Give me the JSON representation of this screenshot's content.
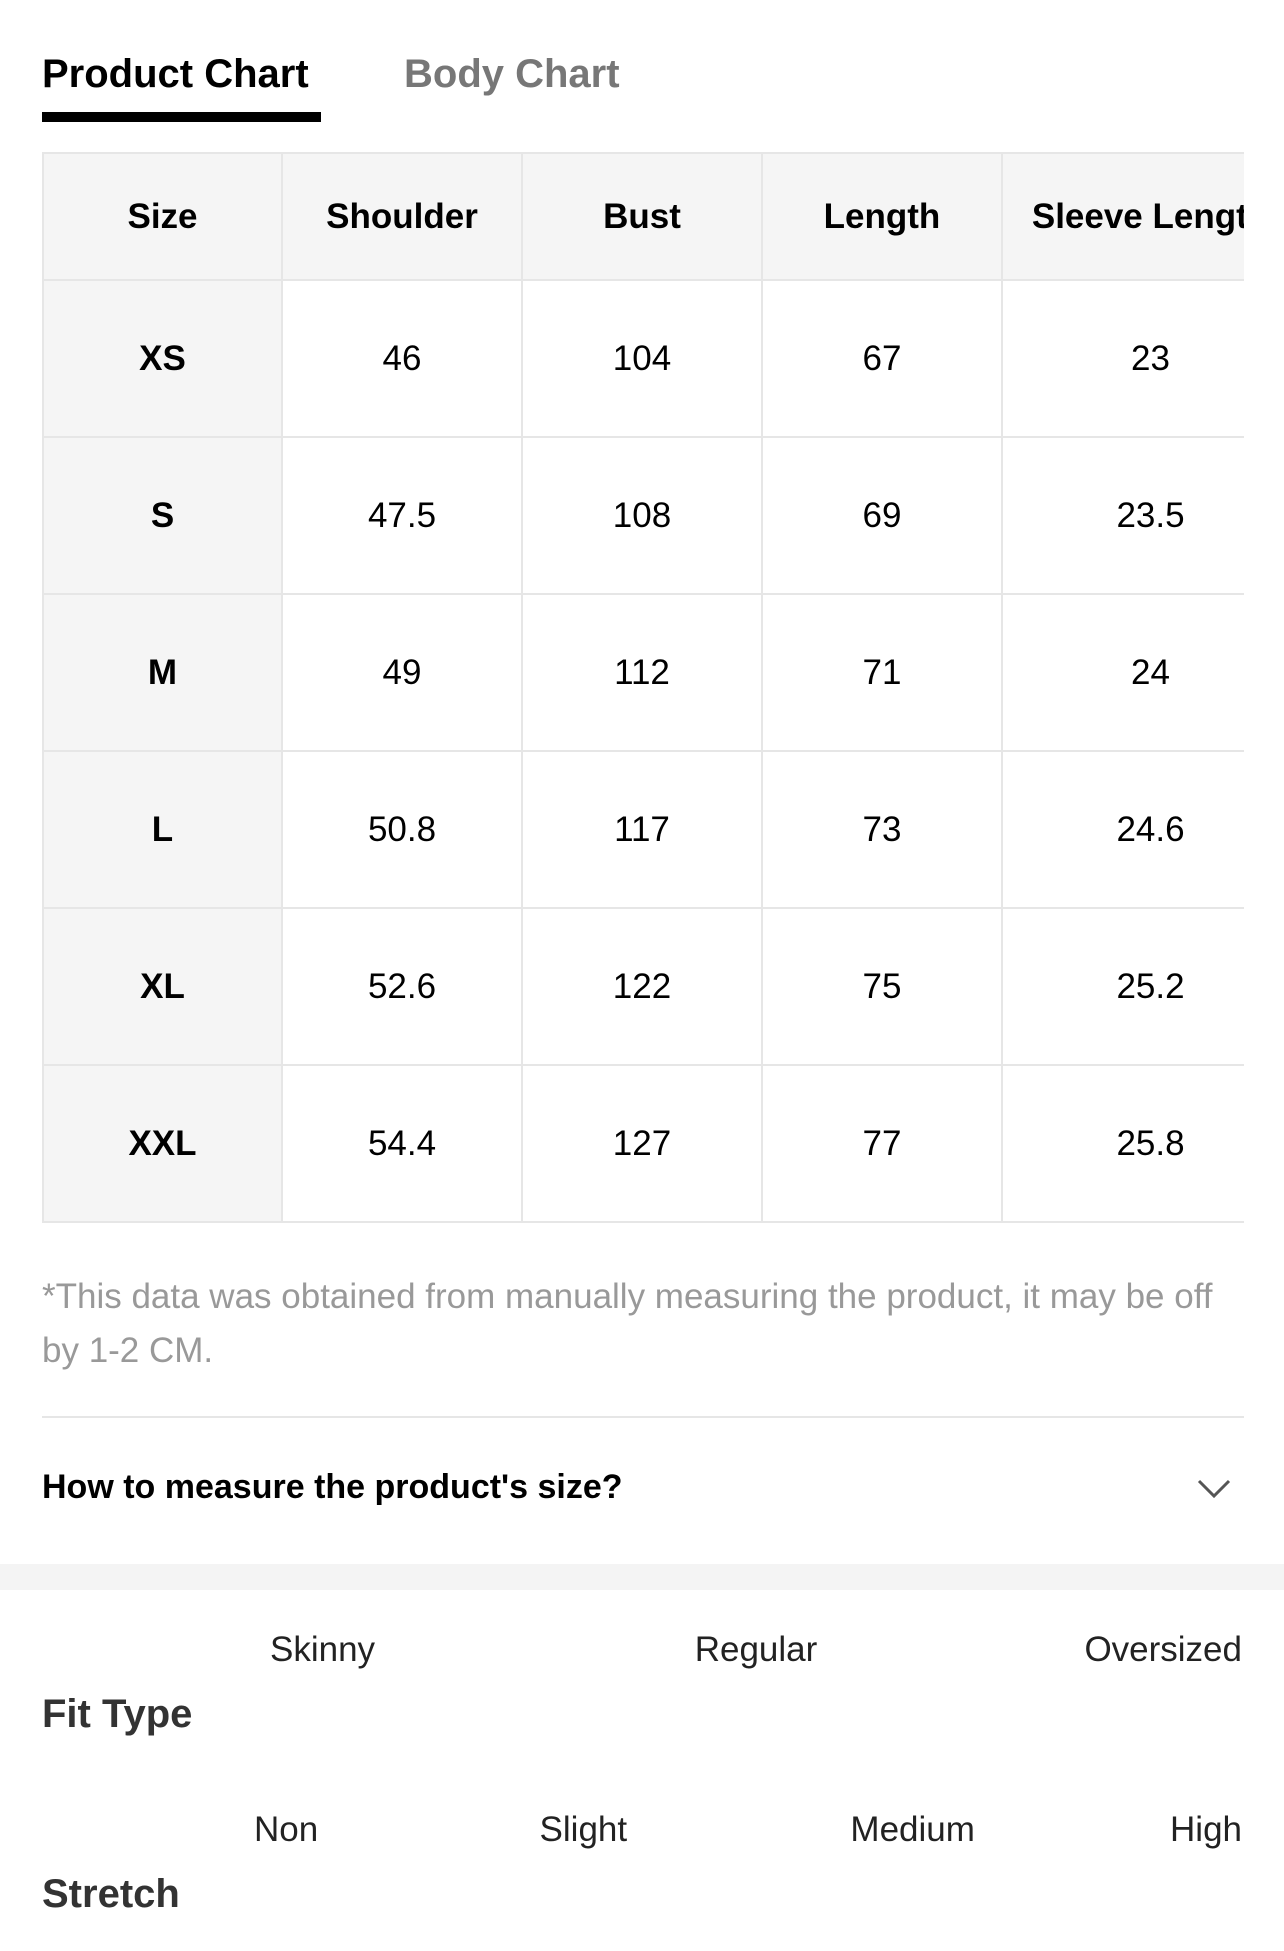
{
  "tabs": [
    "Product Chart",
    "Body Chart"
  ],
  "table": {
    "header": [
      "Size",
      "Shoulder",
      "Bust",
      "Length",
      "Sleeve Length"
    ],
    "rows": [
      [
        "XS",
        "46",
        "104",
        "67",
        "23"
      ],
      [
        "S",
        "47.5",
        "108",
        "69",
        "23.5"
      ],
      [
        "M",
        "49",
        "112",
        "71",
        "24"
      ],
      [
        "L",
        "50.8",
        "117",
        "73",
        "24.6"
      ],
      [
        "XL",
        "52.6",
        "122",
        "75",
        "25.2"
      ],
      [
        "XXL",
        "54.4",
        "127",
        "77",
        "25.8"
      ]
    ]
  },
  "note": "*This data was obtained from manually measuring the product, it may be off by 1-2 CM.",
  "accordion": "How to measure the product's size?",
  "fit": {
    "label": "Fit Type",
    "options": [
      "Skinny",
      "Regular",
      "Oversized"
    ],
    "selected": 1
  },
  "stretch": {
    "label": "Stretch",
    "options": [
      "Non",
      "Slight",
      "Medium",
      "High"
    ],
    "selected": 0
  }
}
